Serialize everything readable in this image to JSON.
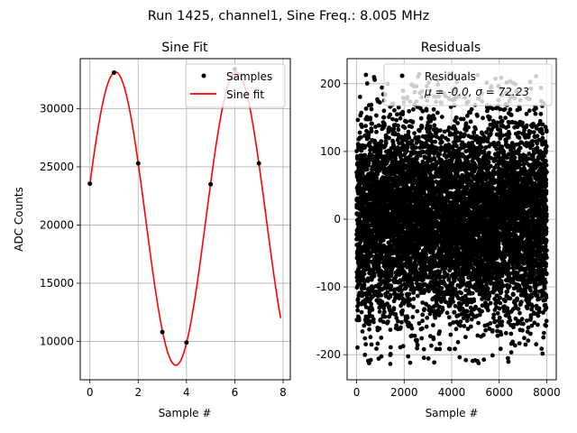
{
  "figure": {
    "suptitle": "Run 1425, channel1, Sine Freq.: 8.005 MHz"
  },
  "chart_data": [
    {
      "type": "line",
      "title": "Sine Fit",
      "xlabel": "Sample #",
      "ylabel": "ADC Counts",
      "xlim": [
        -0.4,
        8.3
      ],
      "ylim": [
        6700,
        34300
      ],
      "xticks": [
        0,
        2,
        4,
        6,
        8
      ],
      "yticks": [
        10000,
        15000,
        20000,
        25000,
        30000
      ],
      "grid": true,
      "legend_position": "top-right",
      "legend": [
        {
          "label": "Samples",
          "marker": "dot",
          "color": "#000000"
        },
        {
          "label": "Sine fit",
          "marker": "line",
          "color": "#ff0000"
        }
      ],
      "samples": {
        "x": [
          0,
          1,
          2,
          3,
          4,
          5,
          6,
          7
        ],
        "y": [
          23550,
          33100,
          25300,
          10800,
          9900,
          23500,
          33400,
          25300
        ]
      },
      "sine_fit": {
        "amplitude": 12600,
        "offset": 20550,
        "omega": 1.2574,
        "phase": 0.2378,
        "x_range": [
          0,
          7.9
        ],
        "color": "#ff0000"
      }
    },
    {
      "type": "scatter",
      "title": "Residuals",
      "xlabel": "Sample #",
      "ylabel": "",
      "xlim": [
        -400,
        8400
      ],
      "ylim": [
        -237,
        237
      ],
      "xticks": [
        0,
        2000,
        4000,
        6000,
        8000
      ],
      "yticks": [
        -200,
        -100,
        0,
        100,
        200
      ],
      "grid": true,
      "legend_position": "top-right",
      "legend": [
        {
          "label": "Residuals",
          "marker": "dot",
          "color": "#000000"
        },
        {
          "label": "μ = -0.0, σ = 72.23",
          "marker": "none"
        }
      ],
      "n_points": 8000,
      "mean": 0.0,
      "std": 72.23,
      "clip": 215,
      "color": "#000000"
    }
  ]
}
